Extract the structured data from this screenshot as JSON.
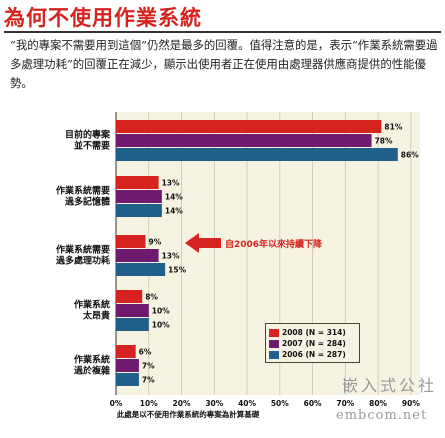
{
  "header": {
    "title": "為何不使用作業系統",
    "subtitle": "“我的專案不需要用到這個”仍然是最多的回覆。值得注意的是，表示“作業系統需要過多處理功耗”的回覆正在減少，顯示出使用者正在使用由處理器供應商提供的性能優勢。"
  },
  "chart_data": {
    "type": "bar",
    "orientation": "horizontal",
    "categories": [
      [
        "目前的專案",
        "並不需要"
      ],
      [
        "作業系統需要",
        "過多記憶體"
      ],
      [
        "作業系統需要",
        "過多處理功耗"
      ],
      [
        "作業系統",
        "太昂貴"
      ],
      [
        "作業系統",
        "過於複雜"
      ]
    ],
    "series": [
      {
        "name": "2008 (N = 314)",
        "color": "#d6231f",
        "values": [
          81,
          13,
          9,
          8,
          6
        ],
        "labels": [
          "81%",
          "13%",
          "9%",
          "8%",
          "6%"
        ]
      },
      {
        "name": "2007 (N = 284)",
        "color": "#6e1a6e",
        "values": [
          78,
          14,
          13,
          10,
          7
        ],
        "labels": [
          "78%",
          "14%",
          "13%",
          "10%",
          "7%"
        ]
      },
      {
        "name": "2006 (N = 287)",
        "color": "#1f5f8a",
        "values": [
          86,
          14,
          15,
          10,
          7
        ],
        "labels": [
          "86%",
          "14%",
          "15%",
          "10%",
          "7%"
        ]
      }
    ],
    "xticks": [
      "0%",
      "10%",
      "20%",
      "30%",
      "40%",
      "50%",
      "60%",
      "70%",
      "80%",
      "90%"
    ],
    "xlim": [
      0,
      90
    ],
    "xlabel": "此處是以不使用作業系統的專案為計算基礎",
    "annotation": "自2006年以來持續下降",
    "annotation_target": [
      "作業系統需要",
      "過多處理功耗"
    ],
    "grid": true,
    "legend_position": "bottom-right",
    "plot_background": "#f7f3e3"
  },
  "watermark": {
    "line1": "嵌入式公社",
    "line2": "embcom.net"
  }
}
